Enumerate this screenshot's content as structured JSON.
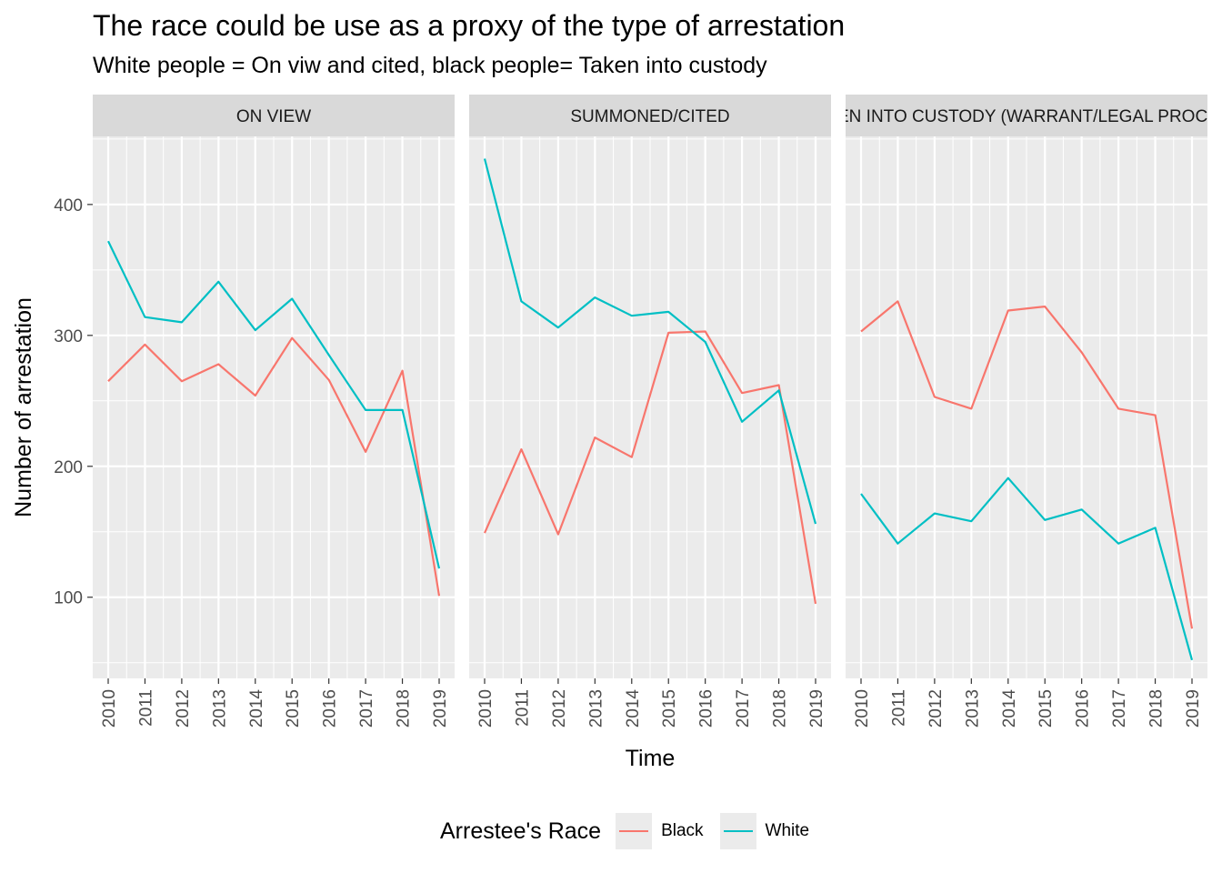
{
  "title": "The race could be use as a proxy of the type of arrestation",
  "subtitle": "White people = On viw and cited, black people= Taken into custody",
  "legend": {
    "title": "Arrestee's Race",
    "items": [
      {
        "label": "Black",
        "color": "#F8766D"
      },
      {
        "label": "White",
        "color": "#00BFC4"
      }
    ]
  },
  "chart_data": {
    "type": "line",
    "facet": "arrest type",
    "xlabel": "Time",
    "ylabel": "Number of arrestation",
    "x": [
      2010,
      2011,
      2012,
      2013,
      2014,
      2015,
      2016,
      2017,
      2018,
      2019
    ],
    "ylim": [
      38,
      452
    ],
    "yticks": [
      100,
      200,
      300,
      400
    ],
    "grid": true,
    "legend_position": "bottom",
    "panels": [
      {
        "label": "ON VIEW",
        "series": [
          {
            "name": "Black",
            "color": "#F8766D",
            "values": [
              265,
              293,
              265,
              278,
              254,
              298,
              266,
              211,
              273,
              101
            ]
          },
          {
            "name": "White",
            "color": "#00BFC4",
            "values": [
              372,
              314,
              310,
              341,
              304,
              328,
              285,
              243,
              243,
              122
            ]
          }
        ]
      },
      {
        "label": "SUMMONED/CITED",
        "series": [
          {
            "name": "Black",
            "color": "#F8766D",
            "values": [
              149,
              213,
              148,
              222,
              207,
              302,
              303,
              256,
              262,
              95
            ]
          },
          {
            "name": "White",
            "color": "#00BFC4",
            "values": [
              435,
              326,
              306,
              329,
              315,
              318,
              295,
              234,
              258,
              156
            ]
          }
        ]
      },
      {
        "label": "TAKEN INTO CUSTODY (WARRANT/LEGAL PROCESS)",
        "series": [
          {
            "name": "Black",
            "color": "#F8766D",
            "values": [
              303,
              326,
              253,
              244,
              319,
              322,
              287,
              244,
              239,
              76
            ]
          },
          {
            "name": "White",
            "color": "#00BFC4",
            "values": [
              179,
              141,
              164,
              158,
              191,
              159,
              167,
              141,
              153,
              52
            ]
          }
        ]
      }
    ]
  }
}
